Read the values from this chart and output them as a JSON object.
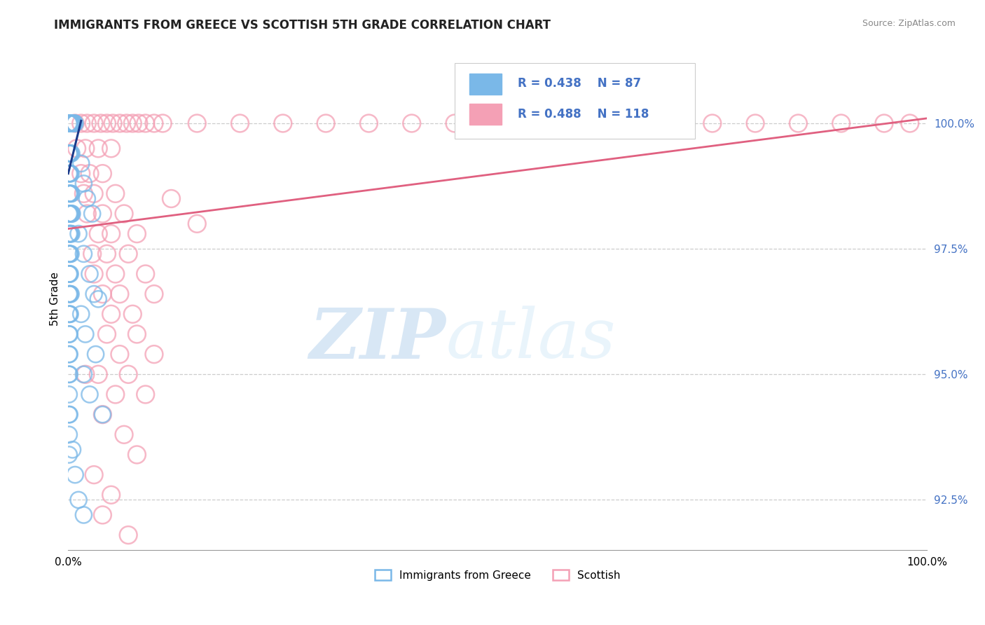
{
  "title": "IMMIGRANTS FROM GREECE VS SCOTTISH 5TH GRADE CORRELATION CHART",
  "source_text": "Source: ZipAtlas.com",
  "ylabel": "5th Grade",
  "xlim": [
    0,
    100
  ],
  "ylim": [
    91.5,
    101.5
  ],
  "yticks": [
    92.5,
    95.0,
    97.5,
    100.0
  ],
  "ytick_labels": [
    "92.5%",
    "95.0%",
    "97.5%",
    "100.0%"
  ],
  "xticks": [
    0,
    100
  ],
  "xtick_labels": [
    "0.0%",
    "100.0%"
  ],
  "legend_r1": "R = 0.438",
  "legend_n1": "N = 87",
  "legend_r2": "R = 0.488",
  "legend_n2": "N = 118",
  "legend_label1": "Immigrants from Greece",
  "legend_label2": "Scottish",
  "color_blue": "#7ab8e8",
  "color_pink": "#f4a0b5",
  "color_trendline_blue": "#1a3a8a",
  "color_trendline_pink": "#e06080",
  "watermark_color": "#c8dff0",
  "watermark_zip": "ZIP",
  "watermark_atlas": "atlas",
  "blue_points": [
    [
      0.05,
      100.0
    ],
    [
      0.12,
      100.0
    ],
    [
      0.18,
      100.0
    ],
    [
      0.25,
      100.0
    ],
    [
      0.32,
      100.0
    ],
    [
      0.38,
      100.0
    ],
    [
      0.45,
      100.0
    ],
    [
      0.52,
      100.0
    ],
    [
      0.58,
      100.0
    ],
    [
      0.65,
      100.0
    ],
    [
      0.72,
      100.0
    ],
    [
      0.78,
      100.0
    ],
    [
      0.08,
      99.4
    ],
    [
      0.15,
      99.4
    ],
    [
      0.22,
      99.4
    ],
    [
      0.3,
      99.4
    ],
    [
      0.38,
      99.4
    ],
    [
      0.08,
      99.0
    ],
    [
      0.15,
      99.0
    ],
    [
      0.22,
      99.0
    ],
    [
      0.3,
      99.0
    ],
    [
      0.08,
      98.6
    ],
    [
      0.15,
      98.6
    ],
    [
      0.22,
      98.6
    ],
    [
      0.3,
      98.6
    ],
    [
      0.38,
      98.6
    ],
    [
      0.08,
      98.2
    ],
    [
      0.15,
      98.2
    ],
    [
      0.22,
      98.2
    ],
    [
      0.3,
      98.2
    ],
    [
      0.38,
      98.2
    ],
    [
      0.45,
      98.2
    ],
    [
      0.08,
      97.8
    ],
    [
      0.15,
      97.8
    ],
    [
      0.22,
      97.8
    ],
    [
      0.3,
      97.8
    ],
    [
      0.38,
      97.8
    ],
    [
      0.08,
      97.4
    ],
    [
      0.15,
      97.4
    ],
    [
      0.22,
      97.4
    ],
    [
      0.3,
      97.4
    ],
    [
      0.08,
      97.0
    ],
    [
      0.15,
      97.0
    ],
    [
      0.22,
      97.0
    ],
    [
      0.08,
      96.6
    ],
    [
      0.15,
      96.6
    ],
    [
      0.22,
      96.6
    ],
    [
      0.3,
      96.6
    ],
    [
      0.08,
      96.2
    ],
    [
      0.15,
      96.2
    ],
    [
      0.22,
      96.2
    ],
    [
      0.08,
      95.8
    ],
    [
      0.15,
      95.8
    ],
    [
      0.08,
      95.4
    ],
    [
      0.15,
      95.4
    ],
    [
      0.08,
      95.0
    ],
    [
      0.15,
      95.0
    ],
    [
      0.08,
      94.6
    ],
    [
      0.08,
      94.2
    ],
    [
      0.15,
      94.2
    ],
    [
      0.08,
      93.8
    ],
    [
      0.08,
      93.4
    ],
    [
      1.5,
      99.2
    ],
    [
      1.8,
      98.8
    ],
    [
      2.2,
      98.5
    ],
    [
      2.8,
      98.2
    ],
    [
      1.2,
      97.8
    ],
    [
      1.8,
      97.4
    ],
    [
      2.5,
      97.0
    ],
    [
      3.0,
      96.6
    ],
    [
      1.5,
      96.2
    ],
    [
      2.0,
      95.8
    ],
    [
      3.2,
      95.4
    ],
    [
      1.8,
      95.0
    ],
    [
      2.5,
      94.6
    ],
    [
      4.0,
      94.2
    ],
    [
      3.5,
      96.5
    ],
    [
      0.5,
      93.5
    ],
    [
      0.8,
      93.0
    ],
    [
      1.2,
      92.5
    ],
    [
      1.8,
      92.2
    ]
  ],
  "pink_points": [
    [
      0.8,
      100.0
    ],
    [
      1.5,
      100.0
    ],
    [
      2.2,
      100.0
    ],
    [
      3.0,
      100.0
    ],
    [
      3.8,
      100.0
    ],
    [
      4.5,
      100.0
    ],
    [
      5.2,
      100.0
    ],
    [
      6.0,
      100.0
    ],
    [
      6.8,
      100.0
    ],
    [
      7.5,
      100.0
    ],
    [
      8.2,
      100.0
    ],
    [
      9.0,
      100.0
    ],
    [
      10.0,
      100.0
    ],
    [
      11.0,
      100.0
    ],
    [
      15.0,
      100.0
    ],
    [
      20.0,
      100.0
    ],
    [
      25.0,
      100.0
    ],
    [
      30.0,
      100.0
    ],
    [
      35.0,
      100.0
    ],
    [
      40.0,
      100.0
    ],
    [
      45.0,
      100.0
    ],
    [
      50.0,
      100.0
    ],
    [
      55.0,
      100.0
    ],
    [
      60.0,
      100.0
    ],
    [
      65.0,
      100.0
    ],
    [
      70.0,
      100.0
    ],
    [
      75.0,
      100.0
    ],
    [
      80.0,
      100.0
    ],
    [
      85.0,
      100.0
    ],
    [
      90.0,
      100.0
    ],
    [
      95.0,
      100.0
    ],
    [
      98.0,
      100.0
    ],
    [
      1.0,
      99.5
    ],
    [
      2.0,
      99.5
    ],
    [
      3.5,
      99.5
    ],
    [
      5.0,
      99.5
    ],
    [
      1.5,
      99.0
    ],
    [
      2.5,
      99.0
    ],
    [
      4.0,
      99.0
    ],
    [
      1.8,
      98.6
    ],
    [
      3.0,
      98.6
    ],
    [
      5.5,
      98.6
    ],
    [
      2.2,
      98.2
    ],
    [
      4.0,
      98.2
    ],
    [
      6.5,
      98.2
    ],
    [
      3.5,
      97.8
    ],
    [
      5.0,
      97.8
    ],
    [
      8.0,
      97.8
    ],
    [
      2.8,
      97.4
    ],
    [
      4.5,
      97.4
    ],
    [
      7.0,
      97.4
    ],
    [
      3.0,
      97.0
    ],
    [
      5.5,
      97.0
    ],
    [
      9.0,
      97.0
    ],
    [
      4.0,
      96.6
    ],
    [
      6.0,
      96.6
    ],
    [
      10.0,
      96.6
    ],
    [
      5.0,
      96.2
    ],
    [
      7.5,
      96.2
    ],
    [
      4.5,
      95.8
    ],
    [
      8.0,
      95.8
    ],
    [
      6.0,
      95.4
    ],
    [
      10.0,
      95.4
    ],
    [
      3.5,
      95.0
    ],
    [
      7.0,
      95.0
    ],
    [
      5.5,
      94.6
    ],
    [
      9.0,
      94.6
    ],
    [
      4.0,
      94.2
    ],
    [
      6.5,
      93.8
    ],
    [
      8.0,
      93.4
    ],
    [
      3.0,
      93.0
    ],
    [
      5.0,
      92.6
    ],
    [
      4.0,
      92.2
    ],
    [
      7.0,
      91.8
    ],
    [
      2.0,
      95.0
    ],
    [
      12.0,
      98.5
    ],
    [
      15.0,
      98.0
    ]
  ],
  "blue_trendline": [
    [
      0,
      99.0
    ],
    [
      1.5,
      100.05
    ]
  ],
  "pink_trendline": [
    [
      0,
      97.9
    ],
    [
      100,
      100.1
    ]
  ]
}
